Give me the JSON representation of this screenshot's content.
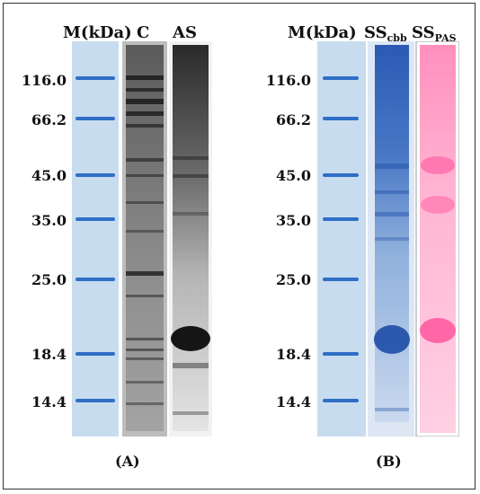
{
  "panel_a": {
    "header_m": "M(kDa)",
    "header_c": "C",
    "header_as": "AS",
    "tag": "(A)",
    "markers": [
      "116.0",
      "66.2",
      "45.0",
      "35.0",
      "25.0",
      "18.4",
      "14.4"
    ]
  },
  "panel_b": {
    "header_m": "M(kDa)",
    "header_ss": "SS",
    "sub_cbb": "cbb",
    "sub_pas": "PAS",
    "tag": "(B)",
    "markers": [
      "116.0",
      "66.2",
      "45.0",
      "35.0",
      "25.0",
      "18.4",
      "14.4"
    ]
  },
  "colors": {
    "marker_band": "#2f6fc6",
    "gel_background": "#c8dcef",
    "cbb_stain": "#2f5fb8",
    "pas_stain": "#ff4f9a",
    "silver_stain": "#1a1a1a"
  }
}
